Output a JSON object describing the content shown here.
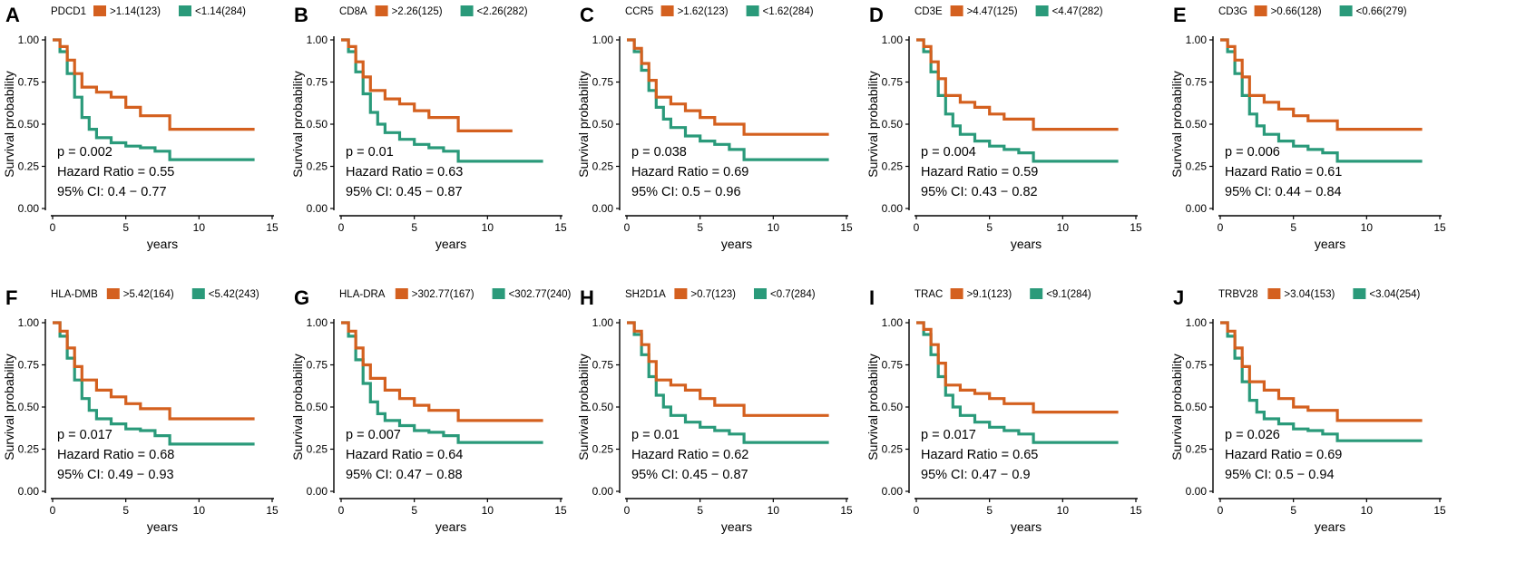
{
  "colors": {
    "high": "#d4601f",
    "low": "#2a9a7a",
    "axis": "#000000"
  },
  "shared": {
    "xlabel": "years",
    "ylabel": "Survival probability",
    "xticks": [
      "0",
      "5",
      "10",
      "15"
    ],
    "yticks": [
      "0.00",
      "0.25",
      "0.50",
      "0.75",
      "1.00"
    ],
    "hr_prefix": "Hazard Ratio = ",
    "ci_prefix": "95% CI: "
  },
  "chart_data": [
    {
      "type": "line",
      "panel": "A",
      "gene": "PDCD1",
      "legend": [
        ">1.14(123)",
        "<1.14(284)"
      ],
      "p": "p = 0.002",
      "hr": "0.55",
      "ci": "0.4 − 0.77",
      "xlim": [
        0,
        15
      ],
      "ylim": [
        0,
        1
      ],
      "xmax": 13.8,
      "series": [
        {
          "name": ">1.14(123)",
          "group": "high",
          "x": [
            0,
            0.5,
            1,
            1.5,
            2,
            3,
            4,
            5,
            6,
            8,
            13.8
          ],
          "y": [
            1.0,
            0.96,
            0.88,
            0.8,
            0.72,
            0.69,
            0.66,
            0.6,
            0.55,
            0.47,
            0.47
          ]
        },
        {
          "name": "<1.14(284)",
          "group": "low",
          "x": [
            0,
            0.5,
            1,
            1.5,
            2,
            2.5,
            3,
            4,
            5,
            6,
            7,
            8,
            13.8
          ],
          "y": [
            1.0,
            0.93,
            0.8,
            0.66,
            0.54,
            0.47,
            0.42,
            0.39,
            0.37,
            0.36,
            0.34,
            0.29,
            0.29
          ]
        }
      ]
    },
    {
      "type": "line",
      "panel": "B",
      "gene": "CD8A",
      "legend": [
        ">2.26(125)",
        "<2.26(282)"
      ],
      "p": "p = 0.01",
      "hr": "0.63",
      "ci": "0.45 − 0.87",
      "xlim": [
        0,
        15
      ],
      "ylim": [
        0,
        1
      ],
      "xmax": 13.8,
      "xmax_high": 11.7,
      "series": [
        {
          "name": ">2.26(125)",
          "group": "high",
          "x": [
            0,
            0.5,
            1,
            1.5,
            2,
            3,
            4,
            5,
            6,
            8,
            11.7
          ],
          "y": [
            1.0,
            0.96,
            0.87,
            0.78,
            0.7,
            0.65,
            0.62,
            0.58,
            0.54,
            0.46,
            0.46
          ]
        },
        {
          "name": "<2.26(282)",
          "group": "low",
          "x": [
            0,
            0.5,
            1,
            1.5,
            2,
            2.5,
            3,
            4,
            5,
            6,
            7,
            8,
            13.8
          ],
          "y": [
            1.0,
            0.93,
            0.81,
            0.68,
            0.57,
            0.5,
            0.45,
            0.41,
            0.38,
            0.36,
            0.34,
            0.28,
            0.28
          ]
        }
      ]
    },
    {
      "type": "line",
      "panel": "C",
      "gene": "CCR5",
      "legend": [
        ">1.62(123)",
        "<1.62(284)"
      ],
      "p": "p = 0.038",
      "hr": "0.69",
      "ci": "0.5 − 0.96",
      "xlim": [
        0,
        15
      ],
      "ylim": [
        0,
        1
      ],
      "xmax": 13.8,
      "series": [
        {
          "name": ">1.62(123)",
          "group": "high",
          "x": [
            0,
            0.5,
            1,
            1.5,
            2,
            3,
            4,
            5,
            6,
            8,
            13.8
          ],
          "y": [
            1.0,
            0.95,
            0.86,
            0.76,
            0.66,
            0.62,
            0.58,
            0.54,
            0.5,
            0.44,
            0.44
          ]
        },
        {
          "name": "<1.62(284)",
          "group": "low",
          "x": [
            0,
            0.5,
            1,
            1.5,
            2,
            2.5,
            3,
            4,
            5,
            6,
            7,
            8,
            13.8
          ],
          "y": [
            1.0,
            0.93,
            0.82,
            0.7,
            0.6,
            0.53,
            0.48,
            0.43,
            0.4,
            0.38,
            0.35,
            0.29,
            0.29
          ]
        }
      ]
    },
    {
      "type": "line",
      "panel": "D",
      "gene": "CD3E",
      "legend": [
        ">4.47(125)",
        "<4.47(282)"
      ],
      "p": "p = 0.004",
      "hr": "0.59",
      "ci": "0.43 − 0.82",
      "xlim": [
        0,
        15
      ],
      "ylim": [
        0,
        1
      ],
      "xmax": 13.8,
      "series": [
        {
          "name": ">4.47(125)",
          "group": "high",
          "x": [
            0,
            0.5,
            1,
            1.5,
            2,
            3,
            4,
            5,
            6,
            8,
            13.8
          ],
          "y": [
            1.0,
            0.96,
            0.87,
            0.77,
            0.67,
            0.63,
            0.6,
            0.56,
            0.53,
            0.47,
            0.47
          ]
        },
        {
          "name": "<4.47(282)",
          "group": "low",
          "x": [
            0,
            0.5,
            1,
            1.5,
            2,
            2.5,
            3,
            4,
            5,
            6,
            7,
            8,
            13.8
          ],
          "y": [
            1.0,
            0.93,
            0.81,
            0.67,
            0.56,
            0.49,
            0.44,
            0.4,
            0.37,
            0.35,
            0.33,
            0.28,
            0.28
          ]
        }
      ]
    },
    {
      "type": "line",
      "panel": "E",
      "gene": "CD3G",
      "legend": [
        ">0.66(128)",
        "<0.66(279)"
      ],
      "p": "p = 0.006",
      "hr": "0.61",
      "ci": "0.44 − 0.84",
      "xlim": [
        0,
        15
      ],
      "ylim": [
        0,
        1
      ],
      "xmax": 13.8,
      "series": [
        {
          "name": ">0.66(128)",
          "group": "high",
          "x": [
            0,
            0.5,
            1,
            1.5,
            2,
            3,
            4,
            5,
            6,
            8,
            13.8
          ],
          "y": [
            1.0,
            0.96,
            0.88,
            0.78,
            0.67,
            0.63,
            0.59,
            0.55,
            0.52,
            0.47,
            0.47
          ]
        },
        {
          "name": "<0.66(279)",
          "group": "low",
          "x": [
            0,
            0.5,
            1,
            1.5,
            2,
            2.5,
            3,
            4,
            5,
            6,
            7,
            8,
            13.8
          ],
          "y": [
            1.0,
            0.93,
            0.8,
            0.67,
            0.56,
            0.49,
            0.44,
            0.4,
            0.37,
            0.35,
            0.33,
            0.28,
            0.28
          ]
        }
      ]
    },
    {
      "type": "line",
      "panel": "F",
      "gene": "HLA-DMB",
      "legend": [
        ">5.42(164)",
        "<5.42(243)"
      ],
      "p": "p = 0.017",
      "hr": "0.68",
      "ci": "0.49 − 0.93",
      "xlim": [
        0,
        15
      ],
      "ylim": [
        0,
        1
      ],
      "xmax": 13.8,
      "series": [
        {
          "name": ">5.42(164)",
          "group": "high",
          "x": [
            0,
            0.5,
            1,
            1.5,
            2,
            3,
            4,
            5,
            6,
            8,
            13.8
          ],
          "y": [
            1.0,
            0.95,
            0.85,
            0.74,
            0.66,
            0.6,
            0.56,
            0.52,
            0.49,
            0.43,
            0.43
          ]
        },
        {
          "name": "<5.42(243)",
          "group": "low",
          "x": [
            0,
            0.5,
            1,
            1.5,
            2,
            2.5,
            3,
            4,
            5,
            6,
            7,
            8,
            13.8
          ],
          "y": [
            1.0,
            0.92,
            0.79,
            0.66,
            0.55,
            0.48,
            0.43,
            0.4,
            0.37,
            0.36,
            0.33,
            0.28,
            0.28
          ]
        }
      ]
    },
    {
      "type": "line",
      "panel": "G",
      "gene": "HLA-DRA",
      "legend": [
        ">302.77(167)",
        "<302.77(240)"
      ],
      "p": "p = 0.007",
      "hr": "0.64",
      "ci": "0.47 − 0.88",
      "xlim": [
        0,
        15
      ],
      "ylim": [
        0,
        1
      ],
      "xmax": 13.8,
      "series": [
        {
          "name": ">302.77(167)",
          "group": "high",
          "x": [
            0,
            0.5,
            1,
            1.5,
            2,
            3,
            4,
            5,
            6,
            8,
            13.8
          ],
          "y": [
            1.0,
            0.95,
            0.85,
            0.75,
            0.67,
            0.6,
            0.55,
            0.51,
            0.48,
            0.42,
            0.42
          ]
        },
        {
          "name": "<302.77(240)",
          "group": "low",
          "x": [
            0,
            0.5,
            1,
            1.5,
            2,
            2.5,
            3,
            4,
            5,
            6,
            7,
            8,
            13.8
          ],
          "y": [
            1.0,
            0.92,
            0.78,
            0.64,
            0.53,
            0.46,
            0.42,
            0.39,
            0.36,
            0.35,
            0.33,
            0.29,
            0.29
          ]
        }
      ]
    },
    {
      "type": "line",
      "panel": "H",
      "gene": "SH2D1A",
      "legend": [
        ">0.7(123)",
        "<0.7(284)"
      ],
      "p": "p = 0.01",
      "hr": "0.62",
      "ci": "0.45 − 0.87",
      "xlim": [
        0,
        15
      ],
      "ylim": [
        0,
        1
      ],
      "xmax": 13.8,
      "series": [
        {
          "name": ">0.7(123)",
          "group": "high",
          "x": [
            0,
            0.5,
            1,
            1.5,
            2,
            3,
            4,
            5,
            6,
            8,
            13.8
          ],
          "y": [
            1.0,
            0.95,
            0.87,
            0.77,
            0.66,
            0.63,
            0.6,
            0.55,
            0.51,
            0.45,
            0.45
          ]
        },
        {
          "name": "<0.7(284)",
          "group": "low",
          "x": [
            0,
            0.5,
            1,
            1.5,
            2,
            2.5,
            3,
            4,
            5,
            6,
            7,
            8,
            13.8
          ],
          "y": [
            1.0,
            0.93,
            0.81,
            0.68,
            0.57,
            0.5,
            0.45,
            0.41,
            0.38,
            0.36,
            0.34,
            0.29,
            0.29
          ]
        }
      ]
    },
    {
      "type": "line",
      "panel": "I",
      "gene": "TRAC",
      "legend": [
        ">9.1(123)",
        "<9.1(284)"
      ],
      "p": "p = 0.017",
      "hr": "0.65",
      "ci": "0.47 − 0.9",
      "xlim": [
        0,
        15
      ],
      "ylim": [
        0,
        1
      ],
      "xmax": 13.8,
      "series": [
        {
          "name": ">9.1(123)",
          "group": "high",
          "x": [
            0,
            0.5,
            1,
            1.5,
            2,
            3,
            4,
            5,
            6,
            8,
            13.8
          ],
          "y": [
            1.0,
            0.96,
            0.87,
            0.76,
            0.63,
            0.6,
            0.58,
            0.55,
            0.52,
            0.47,
            0.47
          ]
        },
        {
          "name": "<9.1(284)",
          "group": "low",
          "x": [
            0,
            0.5,
            1,
            1.5,
            2,
            2.5,
            3,
            4,
            5,
            6,
            7,
            8,
            13.8
          ],
          "y": [
            1.0,
            0.93,
            0.81,
            0.68,
            0.57,
            0.5,
            0.45,
            0.41,
            0.38,
            0.36,
            0.34,
            0.29,
            0.29
          ]
        }
      ]
    },
    {
      "type": "line",
      "panel": "J",
      "gene": "TRBV28",
      "legend": [
        ">3.04(153)",
        "<3.04(254)"
      ],
      "p": "p = 0.026",
      "hr": "0.69",
      "ci": "0.5 − 0.94",
      "xlim": [
        0,
        15
      ],
      "ylim": [
        0,
        1
      ],
      "xmax": 13.8,
      "series": [
        {
          "name": ">3.04(153)",
          "group": "high",
          "x": [
            0,
            0.5,
            1,
            1.5,
            2,
            3,
            4,
            5,
            6,
            8,
            13.8
          ],
          "y": [
            1.0,
            0.95,
            0.85,
            0.74,
            0.65,
            0.6,
            0.55,
            0.5,
            0.48,
            0.42,
            0.42
          ]
        },
        {
          "name": "<3.04(254)",
          "group": "low",
          "x": [
            0,
            0.5,
            1,
            1.5,
            2,
            2.5,
            3,
            4,
            5,
            6,
            7,
            8,
            13.8
          ],
          "y": [
            1.0,
            0.92,
            0.79,
            0.65,
            0.54,
            0.47,
            0.43,
            0.4,
            0.37,
            0.36,
            0.34,
            0.3,
            0.3
          ]
        }
      ]
    }
  ]
}
